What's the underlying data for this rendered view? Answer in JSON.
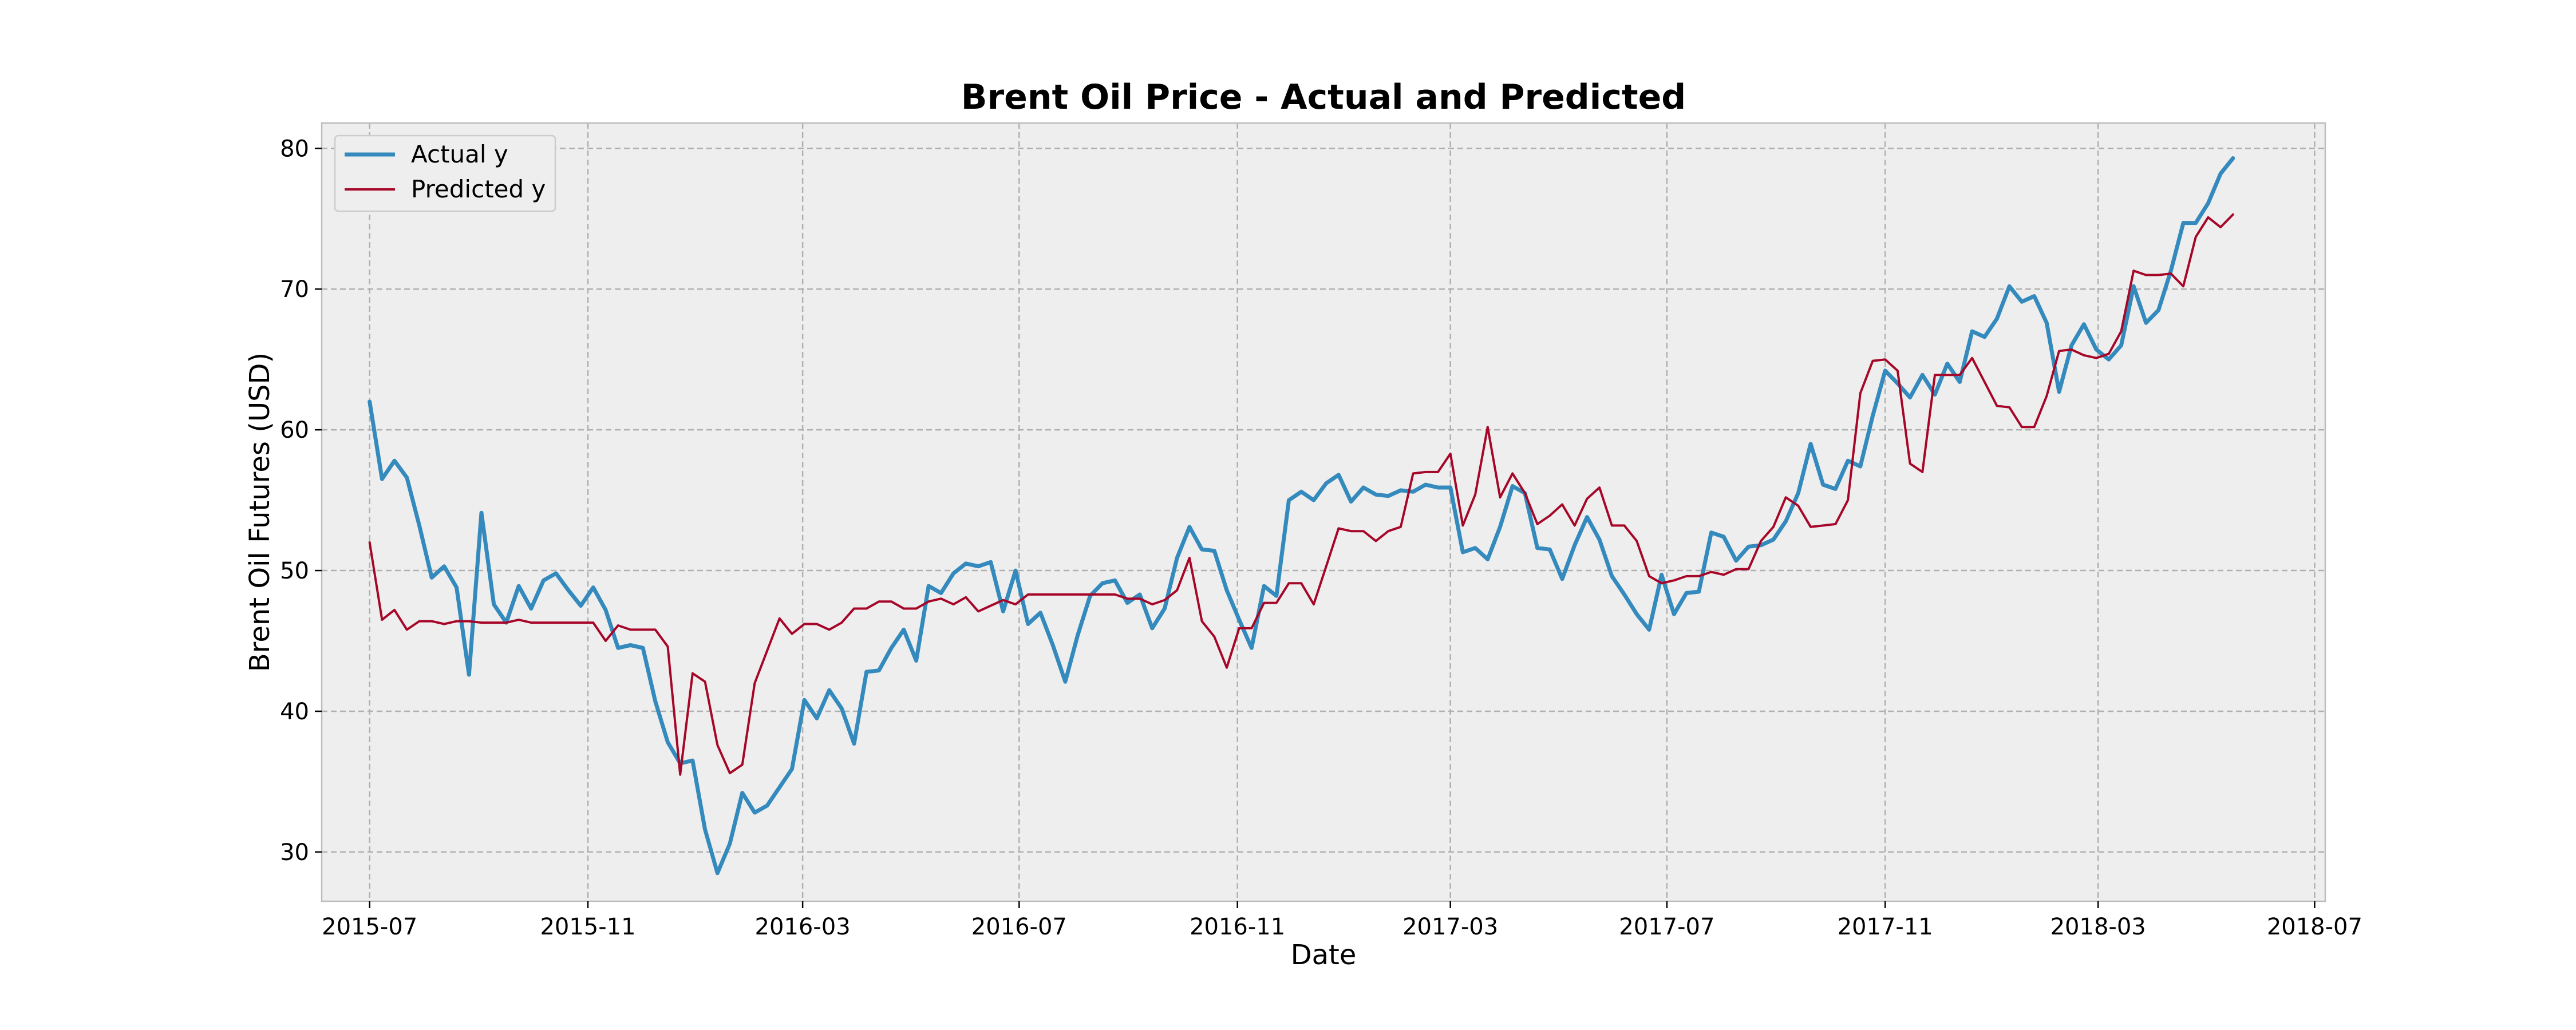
{
  "chart_data": {
    "type": "line",
    "title": "Brent Oil Price - Actual and Predicted",
    "xlabel": "Date",
    "ylabel": "Brent Oil Futures (USD)",
    "xlim": [
      "2015-06-04",
      "2018-07-07"
    ],
    "ylim": [
      26.5,
      81.8
    ],
    "x_ticks": [
      "2015-07",
      "2015-11",
      "2016-03",
      "2016-07",
      "2016-11",
      "2017-03",
      "2017-07",
      "2017-11",
      "2018-03",
      "2018-07"
    ],
    "y_ticks": [
      30,
      40,
      50,
      60,
      70,
      80
    ],
    "grid": true,
    "legend_position": "top-left",
    "x": [
      "2015-07-01",
      "2015-07-08",
      "2015-07-15",
      "2015-07-22",
      "2015-07-29",
      "2015-08-05",
      "2015-08-12",
      "2015-08-19",
      "2015-08-26",
      "2015-09-02",
      "2015-09-09",
      "2015-09-16",
      "2015-09-23",
      "2015-09-30",
      "2015-10-07",
      "2015-10-14",
      "2015-10-21",
      "2015-10-28",
      "2015-11-04",
      "2015-11-11",
      "2015-11-18",
      "2015-11-25",
      "2015-12-02",
      "2015-12-09",
      "2015-12-16",
      "2015-12-23",
      "2015-12-30",
      "2016-01-06",
      "2016-01-13",
      "2016-01-20",
      "2016-01-27",
      "2016-02-03",
      "2016-02-10",
      "2016-02-17",
      "2016-02-24",
      "2016-03-02",
      "2016-03-09",
      "2016-03-16",
      "2016-03-23",
      "2016-03-30",
      "2016-04-06",
      "2016-04-13",
      "2016-04-20",
      "2016-04-27",
      "2016-05-04",
      "2016-05-11",
      "2016-05-18",
      "2016-05-25",
      "2016-06-01",
      "2016-06-08",
      "2016-06-15",
      "2016-06-22",
      "2016-06-29",
      "2016-07-06",
      "2016-07-13",
      "2016-07-20",
      "2016-07-27",
      "2016-08-03",
      "2016-08-10",
      "2016-08-17",
      "2016-08-24",
      "2016-08-31",
      "2016-09-07",
      "2016-09-14",
      "2016-09-21",
      "2016-09-28",
      "2016-10-05",
      "2016-10-12",
      "2016-10-19",
      "2016-10-26",
      "2016-11-02",
      "2016-11-09",
      "2016-11-16",
      "2016-11-23",
      "2016-11-30",
      "2016-12-07",
      "2016-12-14",
      "2016-12-21",
      "2016-12-28",
      "2017-01-04",
      "2017-01-11",
      "2017-01-18",
      "2017-01-25",
      "2017-02-01",
      "2017-02-08",
      "2017-02-15",
      "2017-02-22",
      "2017-03-01",
      "2017-03-08",
      "2017-03-15",
      "2017-03-22",
      "2017-03-29",
      "2017-04-05",
      "2017-04-12",
      "2017-04-19",
      "2017-04-26",
      "2017-05-03",
      "2017-05-10",
      "2017-05-17",
      "2017-05-24",
      "2017-05-31",
      "2017-06-07",
      "2017-06-14",
      "2017-06-21",
      "2017-06-28",
      "2017-07-05",
      "2017-07-12",
      "2017-07-19",
      "2017-07-26",
      "2017-08-02",
      "2017-08-09",
      "2017-08-16",
      "2017-08-23",
      "2017-08-30",
      "2017-09-06",
      "2017-09-13",
      "2017-09-20",
      "2017-09-27",
      "2017-10-04",
      "2017-10-11",
      "2017-10-18",
      "2017-10-25",
      "2017-11-01",
      "2017-11-08",
      "2017-11-15",
      "2017-11-22",
      "2017-11-29",
      "2017-12-06",
      "2017-12-13",
      "2017-12-20",
      "2017-12-27",
      "2018-01-03",
      "2018-01-10",
      "2018-01-17",
      "2018-01-24",
      "2018-01-31",
      "2018-02-07",
      "2018-02-14",
      "2018-02-21",
      "2018-02-28",
      "2018-03-07",
      "2018-03-14",
      "2018-03-21",
      "2018-03-28",
      "2018-04-04",
      "2018-04-11",
      "2018-04-18",
      "2018-04-25",
      "2018-05-02",
      "2018-05-09",
      "2018-05-16"
    ],
    "series": [
      {
        "name": "Actual y",
        "color": "#348ABD",
        "values": [
          62.0,
          56.5,
          57.8,
          56.6,
          53.2,
          49.5,
          50.3,
          48.8,
          42.6,
          54.1,
          47.6,
          46.3,
          48.9,
          47.3,
          49.3,
          49.8,
          48.6,
          47.5,
          48.8,
          47.2,
          44.5,
          44.7,
          44.5,
          40.7,
          37.8,
          36.3,
          36.5,
          31.6,
          28.5,
          30.6,
          34.2,
          32.8,
          33.3,
          34.6,
          35.9,
          40.8,
          39.5,
          41.5,
          40.2,
          37.7,
          42.8,
          42.9,
          44.5,
          45.8,
          43.6,
          48.9,
          48.4,
          49.8,
          50.5,
          50.3,
          50.6,
          47.1,
          50.0,
          46.2,
          47.0,
          44.7,
          42.1,
          45.4,
          48.2,
          49.1,
          49.3,
          47.7,
          48.3,
          45.9,
          47.3,
          50.9,
          53.1,
          51.5,
          51.4,
          48.6,
          46.5,
          44.5,
          48.9,
          48.2,
          55.0,
          55.6,
          55.0,
          56.2,
          56.8,
          54.9,
          55.9,
          55.4,
          55.3,
          55.7,
          55.6,
          56.1,
          55.9,
          55.9,
          51.3,
          51.6,
          50.8,
          53.1,
          56.0,
          55.5,
          51.6,
          51.5,
          49.4,
          51.8,
          53.8,
          52.2,
          49.6,
          48.3,
          46.9,
          45.8,
          49.7,
          46.9,
          48.4,
          48.5,
          52.7,
          52.4,
          50.7,
          51.7,
          51.8,
          52.2,
          53.5,
          55.5,
          59.0,
          56.1,
          55.8,
          57.8,
          57.4,
          61.0,
          64.2,
          63.3,
          62.3,
          63.9,
          62.5,
          64.7,
          63.4,
          67.0,
          66.6,
          67.9,
          70.2,
          69.1,
          69.5,
          67.6,
          62.7,
          66.0,
          67.5,
          65.7,
          65.0,
          66.0,
          70.2,
          67.6,
          68.5,
          71.3,
          74.7,
          74.7,
          76.1,
          78.2,
          79.3
        ]
      },
      {
        "name": "Predicted y",
        "color": "#A60628",
        "values": [
          52.0,
          46.5,
          47.2,
          45.8,
          46.4,
          46.4,
          46.2,
          46.4,
          46.4,
          46.3,
          46.3,
          46.3,
          46.5,
          46.3,
          46.3,
          46.3,
          46.3,
          46.3,
          46.3,
          45.0,
          46.1,
          45.8,
          45.8,
          45.8,
          44.6,
          35.5,
          42.7,
          42.1,
          37.6,
          35.6,
          36.2,
          42.0,
          44.3,
          46.6,
          45.5,
          46.2,
          46.2,
          45.8,
          46.3,
          47.3,
          47.3,
          47.8,
          47.8,
          47.3,
          47.3,
          47.8,
          48.0,
          47.6,
          48.1,
          47.1,
          47.5,
          47.9,
          47.6,
          48.3,
          48.3,
          48.3,
          48.3,
          48.3,
          48.3,
          48.3,
          48.3,
          48.0,
          48.0,
          47.6,
          47.9,
          48.6,
          50.9,
          46.4,
          45.3,
          43.1,
          45.9,
          45.9,
          47.7,
          47.7,
          49.1,
          49.1,
          47.6,
          50.3,
          53.0,
          52.8,
          52.8,
          52.1,
          52.8,
          53.1,
          56.9,
          57.0,
          57.0,
          58.3,
          53.2,
          55.4,
          60.2,
          55.2,
          56.9,
          55.5,
          53.3,
          53.9,
          54.7,
          53.2,
          55.1,
          55.9,
          53.2,
          53.2,
          52.1,
          49.6,
          49.1,
          49.3,
          49.6,
          49.6,
          49.9,
          49.7,
          50.1,
          50.1,
          52.1,
          53.1,
          55.2,
          54.6,
          53.1,
          53.2,
          53.3,
          55.0,
          62.6,
          64.9,
          65.0,
          64.2,
          57.6,
          57.0,
          63.9,
          63.9,
          63.9,
          65.1,
          63.4,
          61.7,
          61.6,
          60.2,
          60.2,
          62.4,
          65.6,
          65.7,
          65.3,
          65.1,
          65.4,
          67.0,
          71.3,
          71.0,
          71.0,
          71.1,
          70.2,
          73.7,
          75.1,
          74.4,
          75.3
        ]
      }
    ]
  }
}
